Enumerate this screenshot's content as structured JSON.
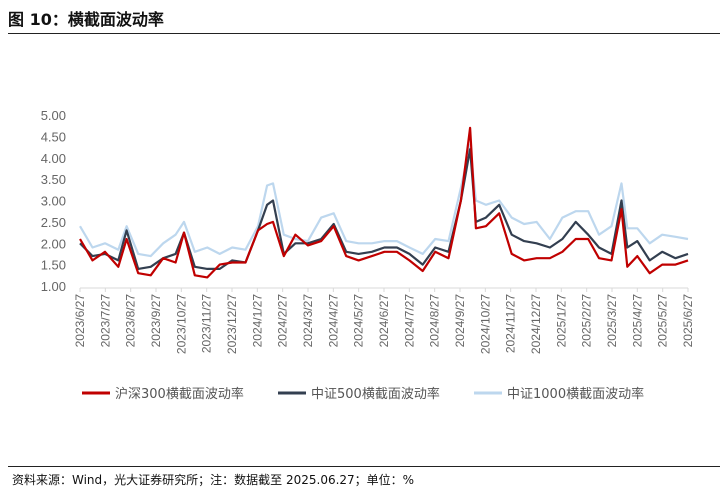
{
  "title": "图 10：横截面波动率",
  "source": "资料来源：Wind，光大证券研究所；注：数据截至 2025.06.27；单位：%",
  "chart_data": {
    "type": "line",
    "title": "",
    "ylim": [
      1.0,
      5.0
    ],
    "yticks": [
      "1.00",
      "1.50",
      "2.00",
      "2.50",
      "3.00",
      "3.50",
      "4.00",
      "4.50",
      "5.00"
    ],
    "xticks": [
      "2023/6/27",
      "2023/7/27",
      "2023/8/27",
      "2023/9/27",
      "2023/10/27",
      "2023/11/27",
      "2023/12/27",
      "2024/1/27",
      "2024/2/27",
      "2024/3/27",
      "2024/4/27",
      "2024/5/27",
      "2024/6/27",
      "2024/7/27",
      "2024/8/27",
      "2024/9/27",
      "2024/10/27",
      "2024/11/27",
      "2024/12/27",
      "2025/1/27",
      "2025/2/27",
      "2025/3/27",
      "2025/4/27",
      "2025/5/27",
      "2025/6/27"
    ],
    "grid": false,
    "legend": "bottom",
    "x": [
      "2023-06-27",
      "2023-07-12",
      "2023-07-27",
      "2023-08-12",
      "2023-08-22",
      "2023-09-05",
      "2023-09-20",
      "2023-10-05",
      "2023-10-20",
      "2023-10-30",
      "2023-11-12",
      "2023-11-27",
      "2023-12-12",
      "2023-12-27",
      "2024-01-12",
      "2024-01-27",
      "2024-02-07",
      "2024-02-14",
      "2024-02-27",
      "2024-03-12",
      "2024-03-27",
      "2024-04-12",
      "2024-04-27",
      "2024-05-12",
      "2024-05-27",
      "2024-06-12",
      "2024-06-27",
      "2024-07-12",
      "2024-07-27",
      "2024-08-12",
      "2024-08-27",
      "2024-09-12",
      "2024-09-27",
      "2024-10-08",
      "2024-10-15",
      "2024-10-27",
      "2024-11-12",
      "2024-11-27",
      "2024-12-12",
      "2024-12-27",
      "2025-01-12",
      "2025-01-27",
      "2025-02-12",
      "2025-02-27",
      "2025-03-12",
      "2025-03-27",
      "2025-04-08",
      "2025-04-15",
      "2025-04-27",
      "2025-05-12",
      "2025-05-27",
      "2025-06-12",
      "2025-06-27"
    ],
    "series": [
      {
        "name": "中证1000横截面波动率",
        "color": "#bdd7ee",
        "values": [
          2.4,
          1.9,
          2.0,
          1.85,
          2.4,
          1.75,
          1.7,
          2.0,
          2.2,
          2.5,
          1.8,
          1.9,
          1.75,
          1.9,
          1.85,
          2.4,
          3.35,
          3.4,
          2.2,
          2.1,
          2.05,
          2.6,
          2.7,
          2.05,
          2.0,
          2.0,
          2.05,
          2.05,
          1.9,
          1.75,
          2.1,
          2.05,
          3.3,
          4.3,
          3.0,
          2.9,
          3.0,
          2.6,
          2.45,
          2.5,
          2.1,
          2.6,
          2.75,
          2.75,
          2.2,
          2.4,
          3.4,
          2.35,
          2.35,
          2.0,
          2.2,
          2.15,
          2.1
        ]
      },
      {
        "name": "中证500横截面波动率",
        "color": "#333f50",
        "values": [
          2.0,
          1.7,
          1.75,
          1.6,
          2.3,
          1.4,
          1.45,
          1.65,
          1.75,
          2.25,
          1.45,
          1.4,
          1.4,
          1.6,
          1.55,
          2.3,
          2.9,
          3.0,
          1.75,
          2.0,
          2.0,
          2.1,
          2.45,
          1.8,
          1.75,
          1.8,
          1.9,
          1.9,
          1.75,
          1.5,
          1.9,
          1.8,
          3.0,
          4.2,
          2.5,
          2.6,
          2.9,
          2.2,
          2.05,
          2.0,
          1.9,
          2.1,
          2.5,
          2.2,
          1.9,
          1.75,
          3.0,
          1.9,
          2.05,
          1.6,
          1.8,
          1.65,
          1.75
        ]
      },
      {
        "name": "沪深300横截面波动率",
        "color": "#c00000",
        "values": [
          2.1,
          1.6,
          1.8,
          1.45,
          2.1,
          1.3,
          1.25,
          1.65,
          1.55,
          2.25,
          1.25,
          1.2,
          1.5,
          1.55,
          1.55,
          2.3,
          2.45,
          2.5,
          1.7,
          2.2,
          1.95,
          2.05,
          2.4,
          1.7,
          1.6,
          1.7,
          1.8,
          1.8,
          1.6,
          1.35,
          1.8,
          1.65,
          3.0,
          4.7,
          2.35,
          2.4,
          2.7,
          1.75,
          1.6,
          1.65,
          1.65,
          1.8,
          2.1,
          2.1,
          1.65,
          1.6,
          2.8,
          1.45,
          1.7,
          1.3,
          1.5,
          1.5,
          1.6
        ]
      }
    ],
    "legend_order": [
      "沪深300横截面波动率",
      "中证500横截面波动率",
      "中证1000横截面波动率"
    ]
  }
}
